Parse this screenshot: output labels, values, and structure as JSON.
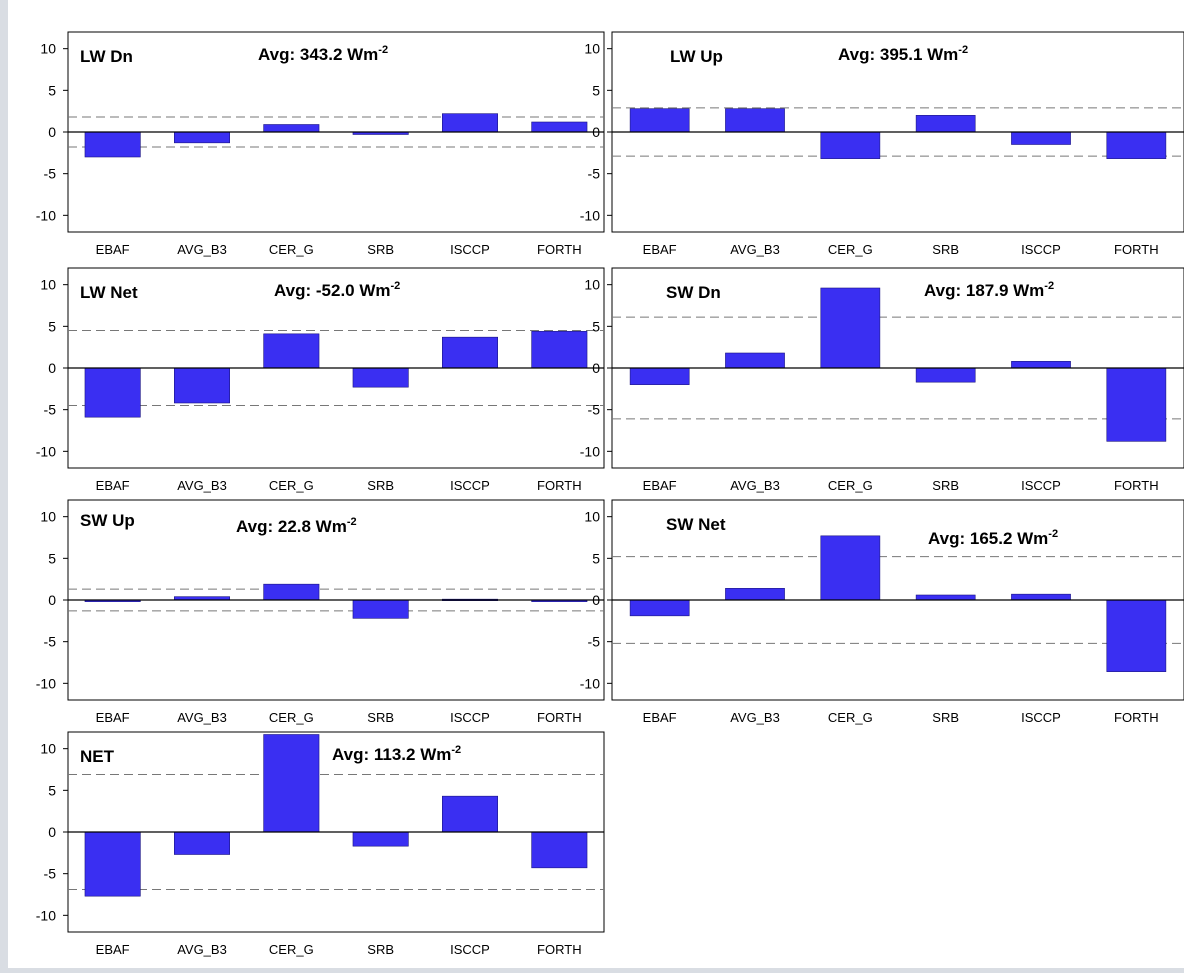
{
  "colors": {
    "bar": "#3a2ff2",
    "bar_edge": "#1a1480",
    "background": "#ffffff",
    "page": "#d9dde3"
  },
  "chart_data": [
    {
      "type": "bar",
      "panel_label": "LW Dn",
      "avg_text": "Avg: 343.2 Wm",
      "avg_exp": "-2",
      "categories": [
        "EBAF",
        "AVG_B3",
        "CER_G",
        "SRB",
        "ISCCP",
        "FORTH"
      ],
      "values": [
        -3.0,
        -1.3,
        0.9,
        -0.3,
        2.2,
        1.2
      ],
      "yticks": [
        "10",
        "5",
        "0",
        "-5",
        "-10"
      ],
      "ylim": [
        -12,
        12
      ],
      "ref_lines": [
        1.8,
        -1.8
      ]
    },
    {
      "type": "bar",
      "panel_label": "LW Up",
      "avg_text": "Avg: 395.1 Wm",
      "avg_exp": "-2",
      "categories": [
        "EBAF",
        "AVG_B3",
        "CER_G",
        "SRB",
        "ISCCP",
        "FORTH"
      ],
      "values": [
        2.8,
        2.8,
        -3.2,
        2.0,
        -1.5,
        -3.2
      ],
      "yticks": [
        "10",
        "5",
        "0",
        "-5",
        "-10"
      ],
      "ylim": [
        -12,
        12
      ],
      "ref_lines": [
        2.9,
        -2.9
      ]
    },
    {
      "type": "bar",
      "panel_label": "LW Net",
      "avg_text": "Avg: -52.0 Wm",
      "avg_exp": "-2",
      "categories": [
        "EBAF",
        "AVG_B3",
        "CER_G",
        "SRB",
        "ISCCP",
        "FORTH"
      ],
      "values": [
        -5.9,
        -4.2,
        4.1,
        -2.3,
        3.7,
        4.4
      ],
      "yticks": [
        "10",
        "5",
        "0",
        "-5",
        "-10"
      ],
      "ylim": [
        -12,
        12
      ],
      "ref_lines": [
        4.5,
        -4.5
      ]
    },
    {
      "type": "bar",
      "panel_label": "SW Dn",
      "avg_text": "Avg: 187.9 Wm",
      "avg_exp": "-2",
      "categories": [
        "EBAF",
        "AVG_B3",
        "CER_G",
        "SRB",
        "ISCCP",
        "FORTH"
      ],
      "values": [
        -2.0,
        1.8,
        9.6,
        -1.7,
        0.8,
        -8.8
      ],
      "yticks": [
        "10",
        "5",
        "0",
        "-5",
        "-10"
      ],
      "ylim": [
        -12,
        12
      ],
      "ref_lines": [
        6.1,
        -6.1
      ]
    },
    {
      "type": "bar",
      "panel_label": "SW Up",
      "avg_text": "Avg: 22.8 Wm",
      "avg_exp": "-2",
      "categories": [
        "EBAF",
        "AVG_B3",
        "CER_G",
        "SRB",
        "ISCCP",
        "FORTH"
      ],
      "values": [
        -0.2,
        0.4,
        1.9,
        -2.2,
        0.1,
        -0.2
      ],
      "yticks": [
        "10",
        "5",
        "0",
        "-5",
        "-10"
      ],
      "ylim": [
        -12,
        12
      ],
      "ref_lines": [
        1.3,
        -1.3
      ]
    },
    {
      "type": "bar",
      "panel_label": "SW Net",
      "avg_text": "Avg: 165.2 Wm",
      "avg_exp": "-2",
      "categories": [
        "EBAF",
        "AVG_B3",
        "CER_G",
        "SRB",
        "ISCCP",
        "FORTH"
      ],
      "values": [
        -1.9,
        1.4,
        7.7,
        0.6,
        0.7,
        -8.6
      ],
      "yticks": [
        "10",
        "5",
        "0",
        "-5",
        "-10"
      ],
      "ylim": [
        -12,
        12
      ],
      "ref_lines": [
        5.2,
        -5.2
      ]
    },
    {
      "type": "bar",
      "panel_label": "NET",
      "avg_text": "Avg: 113.2 Wm",
      "avg_exp": "-2",
      "categories": [
        "EBAF",
        "AVG_B3",
        "CER_G",
        "SRB",
        "ISCCP",
        "FORTH"
      ],
      "values": [
        -7.7,
        -2.7,
        11.7,
        -1.7,
        4.3,
        -4.3
      ],
      "yticks": [
        "10",
        "5",
        "0",
        "-5",
        "-10"
      ],
      "ylim": [
        -12,
        12
      ],
      "ref_lines": [
        6.9,
        -6.9
      ]
    }
  ]
}
